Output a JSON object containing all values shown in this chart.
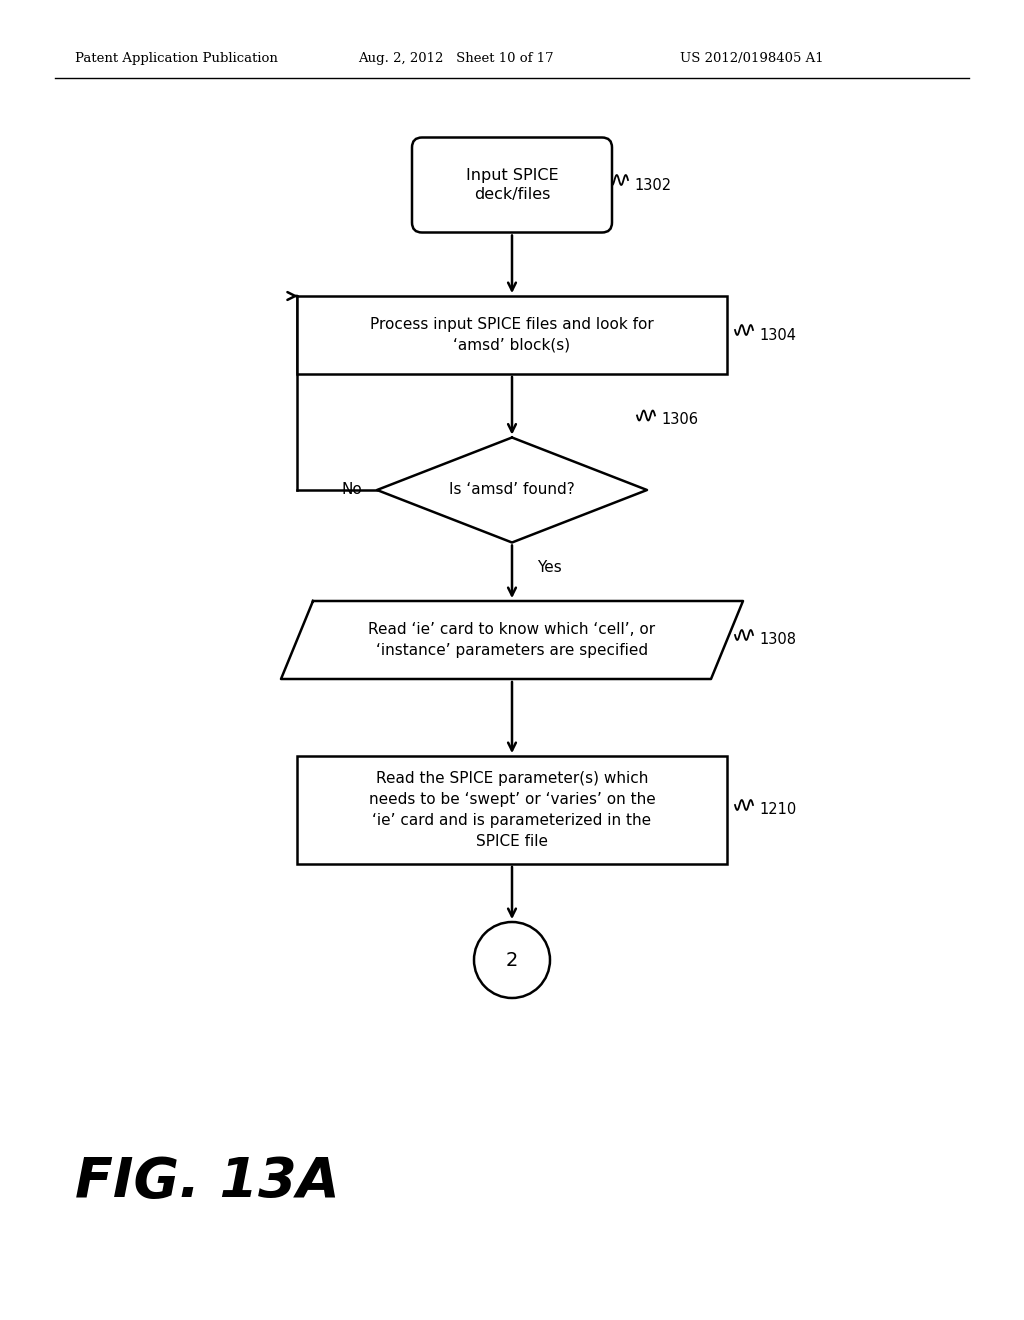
{
  "background_color": "#ffffff",
  "header_left": "Patent Application Publication",
  "header_mid": "Aug. 2, 2012   Sheet 10 of 17",
  "header_right": "US 2012/0198405 A1",
  "fig_label": "FIG. 13A",
  "line_color": "#000000",
  "text_color": "#000000",
  "start_text": "Input SPICE\ndeck/files",
  "start_label": "1302",
  "p1_text": "Process input SPICE files and look for\n‘amsd’ block(s)",
  "p1_label": "1304",
  "decision_text": "Is ‘amsd’ found?",
  "decision_label": "1306",
  "yes_text": "Yes",
  "no_text": "No",
  "p2_text": "Read ‘ie’ card to know which ‘cell’, or\n‘instance’ parameters are specified",
  "p2_label": "1308",
  "p3_text": "Read the SPICE parameter(s) which\nneeds to be ‘swept’ or ‘varies’ on the\n‘ie’ card and is parameterized in the\nSPICE file",
  "p3_label": "1210",
  "end_text": "2"
}
